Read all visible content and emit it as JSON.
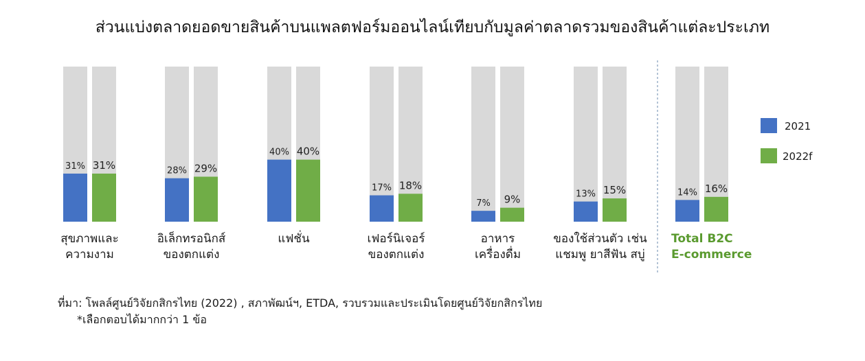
{
  "chart_data": {
    "type": "bar",
    "title": "ส่วนแบ่งตลาดยอดขายสินค้าบนแพลตฟอร์มออนไลน์เทียบกับมูลค่าตลาดรวมของสินค้าแต่ละประเภท",
    "categories": [
      [
        "สุขภาพและ",
        "ความงาม"
      ],
      [
        "อิเล็กทรอนิกส์",
        "ของตกแต่ง"
      ],
      [
        "แฟชั่น"
      ],
      [
        "เฟอร์นิเจอร์",
        "ของตกแต่ง"
      ],
      [
        "อาหาร",
        "เครื่องดื่ม"
      ],
      [
        "ของใช้ส่วนตัว เช่น",
        "แชมพู ยาสีฟัน สบู่"
      ],
      [
        "Total B2C",
        "E-commerce"
      ]
    ],
    "series": [
      {
        "name": "2021",
        "values": [
          31,
          28,
          40,
          17,
          7,
          13,
          14
        ],
        "labels": [
          "31%",
          "28%",
          "40%",
          "17%",
          "7%",
          "13%",
          "14%"
        ]
      },
      {
        "name": "2022f",
        "values": [
          31,
          29,
          40,
          18,
          9,
          15,
          16
        ],
        "labels": [
          "31%",
          "29%",
          "40%",
          "18%",
          "9%",
          "15%",
          "16%"
        ]
      }
    ],
    "ylim": [
      0,
      100
    ],
    "legend_position": "right",
    "grid": false,
    "background_bar_value": 100
  },
  "colors": {
    "series_2021": "#4472c4",
    "series_2022f": "#70ad47",
    "background_bar": "#d9d9d9",
    "total_label": "#5a9a2f",
    "divider": "#9bb0c8"
  },
  "footer": {
    "source": "ที่มา: โพลล์ศูนย์วิจัยกสิกรไทย (2022) , สภาพัฒน์ฯ, ETDA, รวบรวมและประเมินโดยศูนย์วิจัยกสิกรไทย",
    "note": "*เลือกตอบได้มากกว่า 1 ข้อ"
  }
}
